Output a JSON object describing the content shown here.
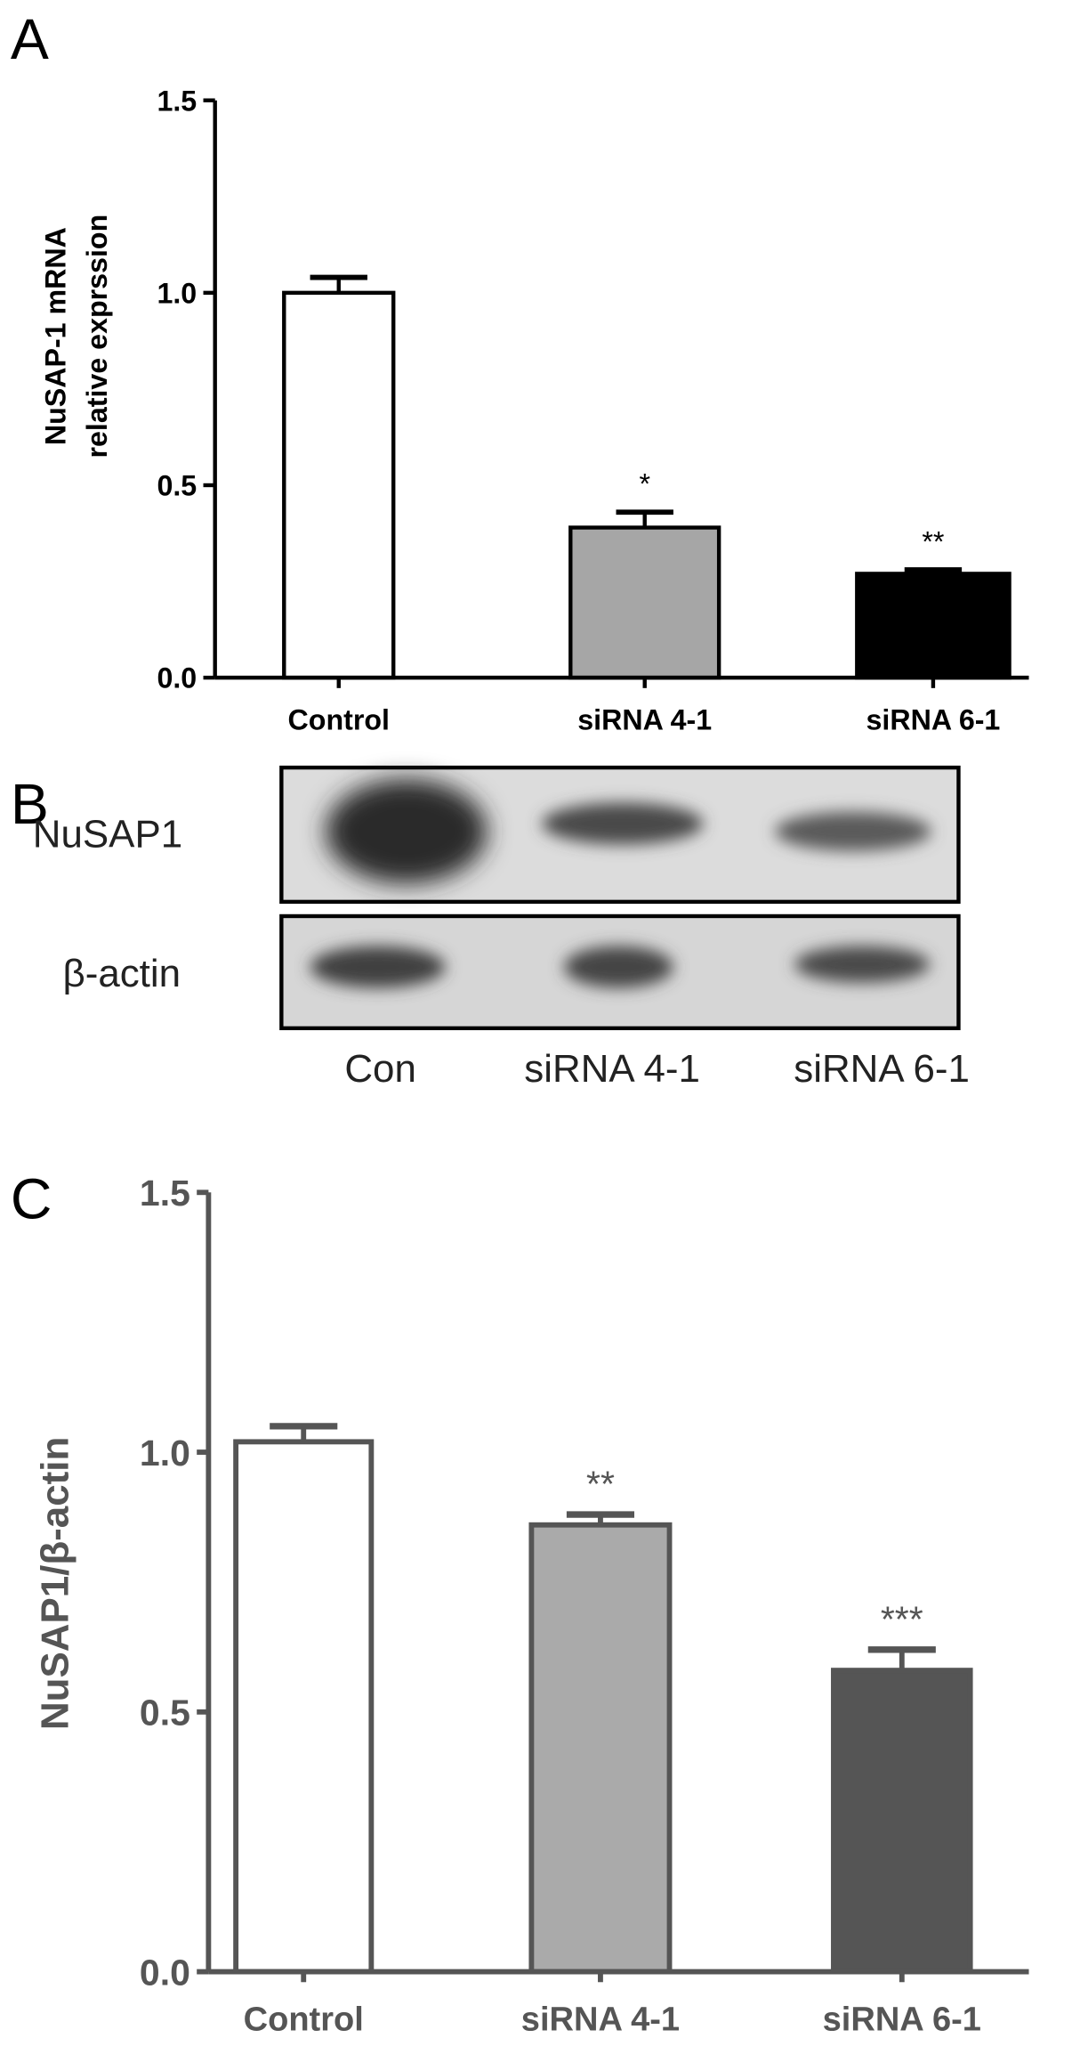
{
  "panels": {
    "a": "A",
    "b": "B",
    "c": "C"
  },
  "chart_data": [
    {
      "type": "bar",
      "panel": "A",
      "title": "",
      "xlabel": "",
      "ylabel": [
        "NuSAP-1 mRNA",
        "relative exprssion"
      ],
      "categories": [
        "Control",
        "siRNA 4-1",
        "siRNA 6-1"
      ],
      "values": [
        1.0,
        0.39,
        0.27
      ],
      "errors": [
        0.04,
        0.04,
        0.01
      ],
      "significance": [
        "",
        "*",
        "**"
      ],
      "fills": [
        "#ffffff",
        "#a6a6a6",
        "#000000"
      ],
      "stroke": "#000000",
      "ylim": [
        0,
        1.5
      ],
      "yticks": [
        "0.0",
        "0.5",
        "1.0",
        "1.5"
      ],
      "grid": false
    },
    {
      "type": "bar",
      "panel": "C",
      "title": "",
      "xlabel": "",
      "ylabel": [
        "NuSAP1/β-actin"
      ],
      "categories": [
        "Control",
        "siRNA 4-1",
        "siRNA 6-1"
      ],
      "values": [
        1.02,
        0.86,
        0.58
      ],
      "errors": [
        0.03,
        0.02,
        0.04
      ],
      "significance": [
        "",
        "**",
        "***"
      ],
      "fills": [
        "#ffffff",
        "#aaaaaa",
        "#555555"
      ],
      "stroke": "#555555",
      "ylim": [
        0,
        1.5
      ],
      "yticks": [
        "0.0",
        "0.5",
        "1.0",
        "1.5"
      ],
      "grid": false
    }
  ],
  "blot": {
    "rows": [
      "NuSAP1",
      "β-actin"
    ],
    "lanes": [
      "Con",
      "siRNA 4-1",
      "siRNA 6-1"
    ]
  }
}
